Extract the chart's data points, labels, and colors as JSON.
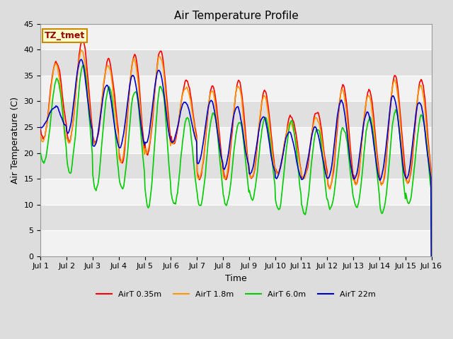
{
  "title": "Air Temperature Profile",
  "xlabel": "Time",
  "ylabel": "Air Temperature (C)",
  "ylim": [
    0,
    45
  ],
  "yticks": [
    0,
    5,
    10,
    15,
    20,
    25,
    30,
    35,
    40,
    45
  ],
  "xtick_labels": [
    "Jul 1",
    "Jul 2",
    "Jul 3",
    "Jul 4",
    "Jul 5",
    "Jul 6",
    "Jul 7",
    "Jul 8",
    "Jul 9",
    "Jul 10",
    "Jul 11",
    "Jul 12",
    "Jul 13",
    "Jul 14",
    "Jul 15",
    "Jul 16"
  ],
  "annotation_text": "TZ_tmet",
  "annotation_facecolor": "#FFFFCC",
  "annotation_edgecolor": "#CC8800",
  "annotation_textcolor": "#990000",
  "series": [
    {
      "label": "AirT 0.35m",
      "color": "#FF0000",
      "lw": 1.2
    },
    {
      "label": "AirT 1.8m",
      "color": "#FF9900",
      "lw": 1.2
    },
    {
      "label": "AirT 6.0m",
      "color": "#00CC00",
      "lw": 1.2
    },
    {
      "label": "AirT 22m",
      "color": "#0000CC",
      "lw": 1.2
    }
  ],
  "fig_bg_color": "#DDDDDD",
  "plot_bg_color": "#E8E8E8",
  "band_color_light": "#F2F2F2",
  "band_color_dark": "#E0E0E0",
  "title_fontsize": 11,
  "axis_label_fontsize": 9,
  "tick_fontsize": 8,
  "annotation_fontsize": 9
}
